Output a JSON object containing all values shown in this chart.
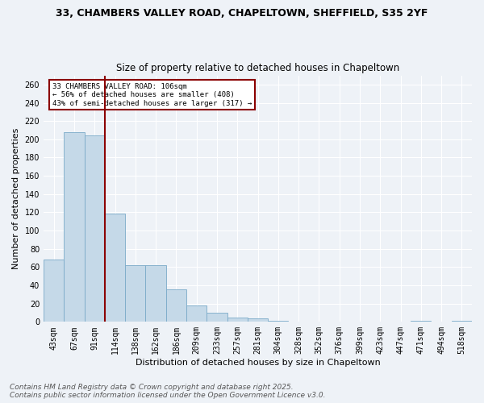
{
  "title_line1": "33, CHAMBERS VALLEY ROAD, CHAPELTOWN, SHEFFIELD, S35 2YF",
  "title_line2": "Size of property relative to detached houses in Chapeltown",
  "xlabel": "Distribution of detached houses by size in Chapeltown",
  "ylabel": "Number of detached properties",
  "bins": [
    "43sqm",
    "67sqm",
    "91sqm",
    "114sqm",
    "138sqm",
    "162sqm",
    "186sqm",
    "209sqm",
    "233sqm",
    "257sqm",
    "281sqm",
    "304sqm",
    "328sqm",
    "352sqm",
    "376sqm",
    "399sqm",
    "423sqm",
    "447sqm",
    "471sqm",
    "494sqm",
    "518sqm"
  ],
  "bar_values": [
    68,
    208,
    204,
    119,
    62,
    62,
    36,
    18,
    10,
    5,
    4,
    1,
    0,
    0,
    0,
    0,
    0,
    0,
    1,
    0,
    1
  ],
  "bar_color": "#c5d9e8",
  "bar_edge_color": "#7aaac8",
  "vline_color": "#8b0000",
  "annotation_text": "33 CHAMBERS VALLEY ROAD: 106sqm\n← 56% of detached houses are smaller (408)\n43% of semi-detached houses are larger (317) →",
  "annotation_box_color": "white",
  "annotation_box_edge": "#8b0000",
  "ylim": [
    0,
    270
  ],
  "yticks": [
    0,
    20,
    40,
    60,
    80,
    100,
    120,
    140,
    160,
    180,
    200,
    220,
    240,
    260
  ],
  "footer_line1": "Contains HM Land Registry data © Crown copyright and database right 2025.",
  "footer_line2": "Contains public sector information licensed under the Open Government Licence v3.0.",
  "bg_color": "#eef2f7",
  "grid_color": "#d8e4f0",
  "title_fontsize": 9,
  "subtitle_fontsize": 8.5,
  "axis_label_fontsize": 8,
  "tick_fontsize": 7,
  "footer_fontsize": 6.5
}
